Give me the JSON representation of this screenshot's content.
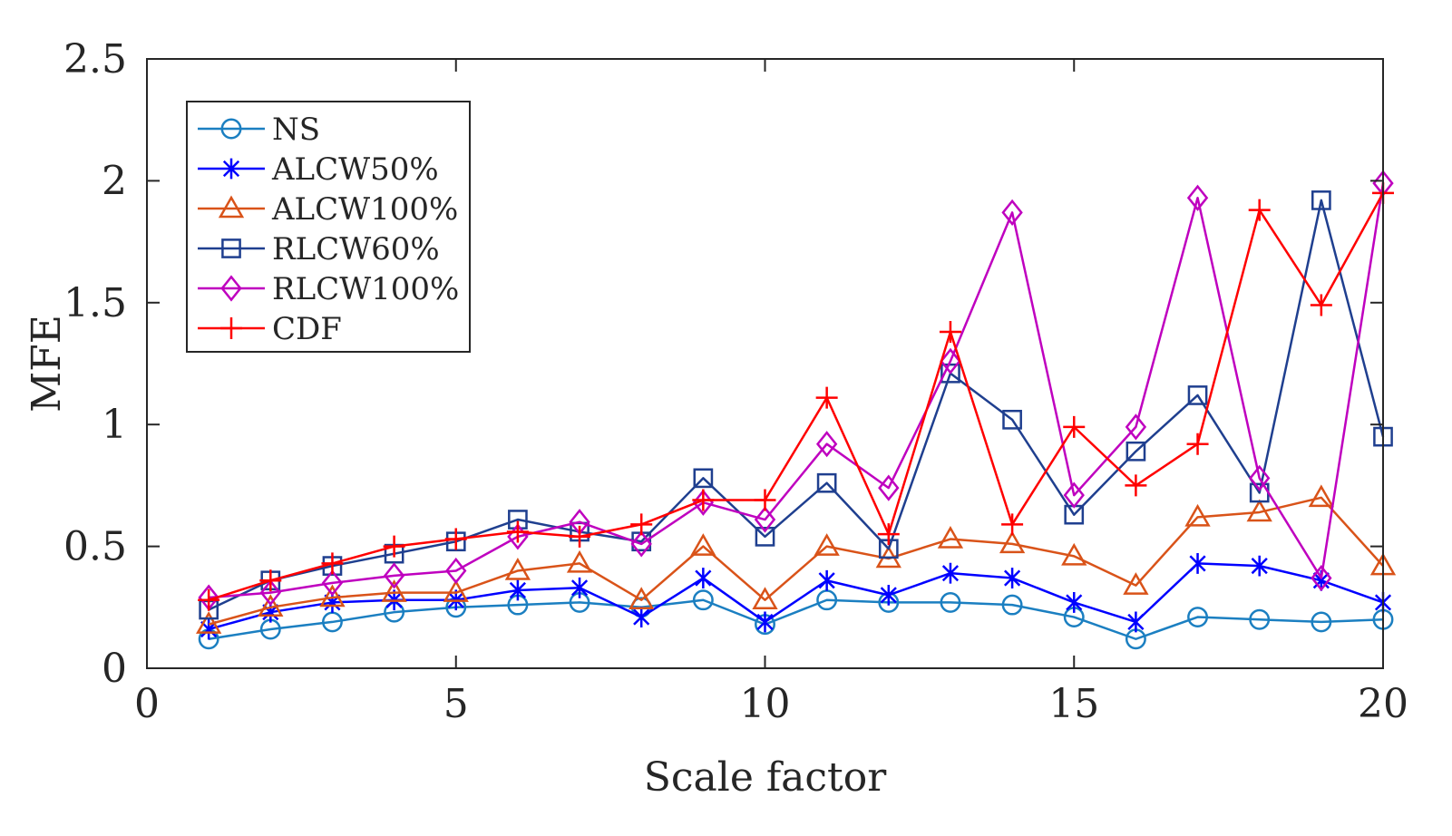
{
  "chart_data": {
    "type": "line",
    "title": "",
    "xlabel": "Scale factor",
    "ylabel": "MFE",
    "xlim": [
      0,
      20
    ],
    "ylim": [
      0,
      2.5
    ],
    "xticks": [
      0,
      5,
      10,
      15,
      20
    ],
    "yticks": [
      0,
      0.5,
      1,
      1.5,
      2,
      2.5
    ],
    "xtick_labels": [
      "0",
      "5",
      "10",
      "15",
      "20"
    ],
    "ytick_labels": [
      "0",
      "0.5",
      "1",
      "1.5",
      "2",
      "2.5"
    ],
    "grid": false,
    "legend_position": "top-left",
    "x": [
      1,
      2,
      3,
      4,
      5,
      6,
      7,
      8,
      9,
      10,
      11,
      12,
      13,
      14,
      15,
      16,
      17,
      18,
      19,
      20
    ],
    "series": [
      {
        "name": "NS",
        "color": "#1b7fc1",
        "marker": "circle",
        "values": [
          0.12,
          0.16,
          0.19,
          0.23,
          0.25,
          0.26,
          0.27,
          0.25,
          0.28,
          0.18,
          0.28,
          0.27,
          0.27,
          0.26,
          0.21,
          0.12,
          0.21,
          0.2,
          0.19,
          0.2
        ]
      },
      {
        "name": "ALCW50%",
        "color": "#0000ff",
        "marker": "asterisk",
        "values": [
          0.16,
          0.23,
          0.27,
          0.28,
          0.28,
          0.32,
          0.33,
          0.21,
          0.37,
          0.19,
          0.36,
          0.3,
          0.39,
          0.37,
          0.27,
          0.19,
          0.43,
          0.42,
          0.36,
          0.27
        ]
      },
      {
        "name": "ALCW100%",
        "color": "#d95319",
        "marker": "triangle",
        "values": [
          0.18,
          0.25,
          0.29,
          0.31,
          0.31,
          0.4,
          0.43,
          0.28,
          0.5,
          0.28,
          0.5,
          0.45,
          0.53,
          0.51,
          0.46,
          0.34,
          0.62,
          0.64,
          0.7,
          0.42
        ]
      },
      {
        "name": "RLCW60%",
        "color": "#1f3f8f",
        "marker": "square",
        "values": [
          0.24,
          0.36,
          0.42,
          0.47,
          0.52,
          0.61,
          0.56,
          0.52,
          0.78,
          0.54,
          0.76,
          0.49,
          1.21,
          1.02,
          0.63,
          0.89,
          1.12,
          0.72,
          1.92,
          0.95
        ]
      },
      {
        "name": "RLCW100%",
        "color": "#bf00bf",
        "marker": "diamond",
        "values": [
          0.29,
          0.31,
          0.35,
          0.38,
          0.4,
          0.54,
          0.6,
          0.51,
          0.68,
          0.61,
          0.92,
          0.74,
          1.26,
          1.87,
          0.71,
          0.99,
          1.93,
          0.78,
          0.37,
          1.99
        ]
      },
      {
        "name": "CDF",
        "color": "#ff0000",
        "marker": "plus",
        "values": [
          0.28,
          0.36,
          0.43,
          0.5,
          0.53,
          0.56,
          0.54,
          0.59,
          0.69,
          0.69,
          1.11,
          0.55,
          1.38,
          0.59,
          0.99,
          0.75,
          0.92,
          1.88,
          1.49,
          1.95
        ]
      }
    ]
  }
}
